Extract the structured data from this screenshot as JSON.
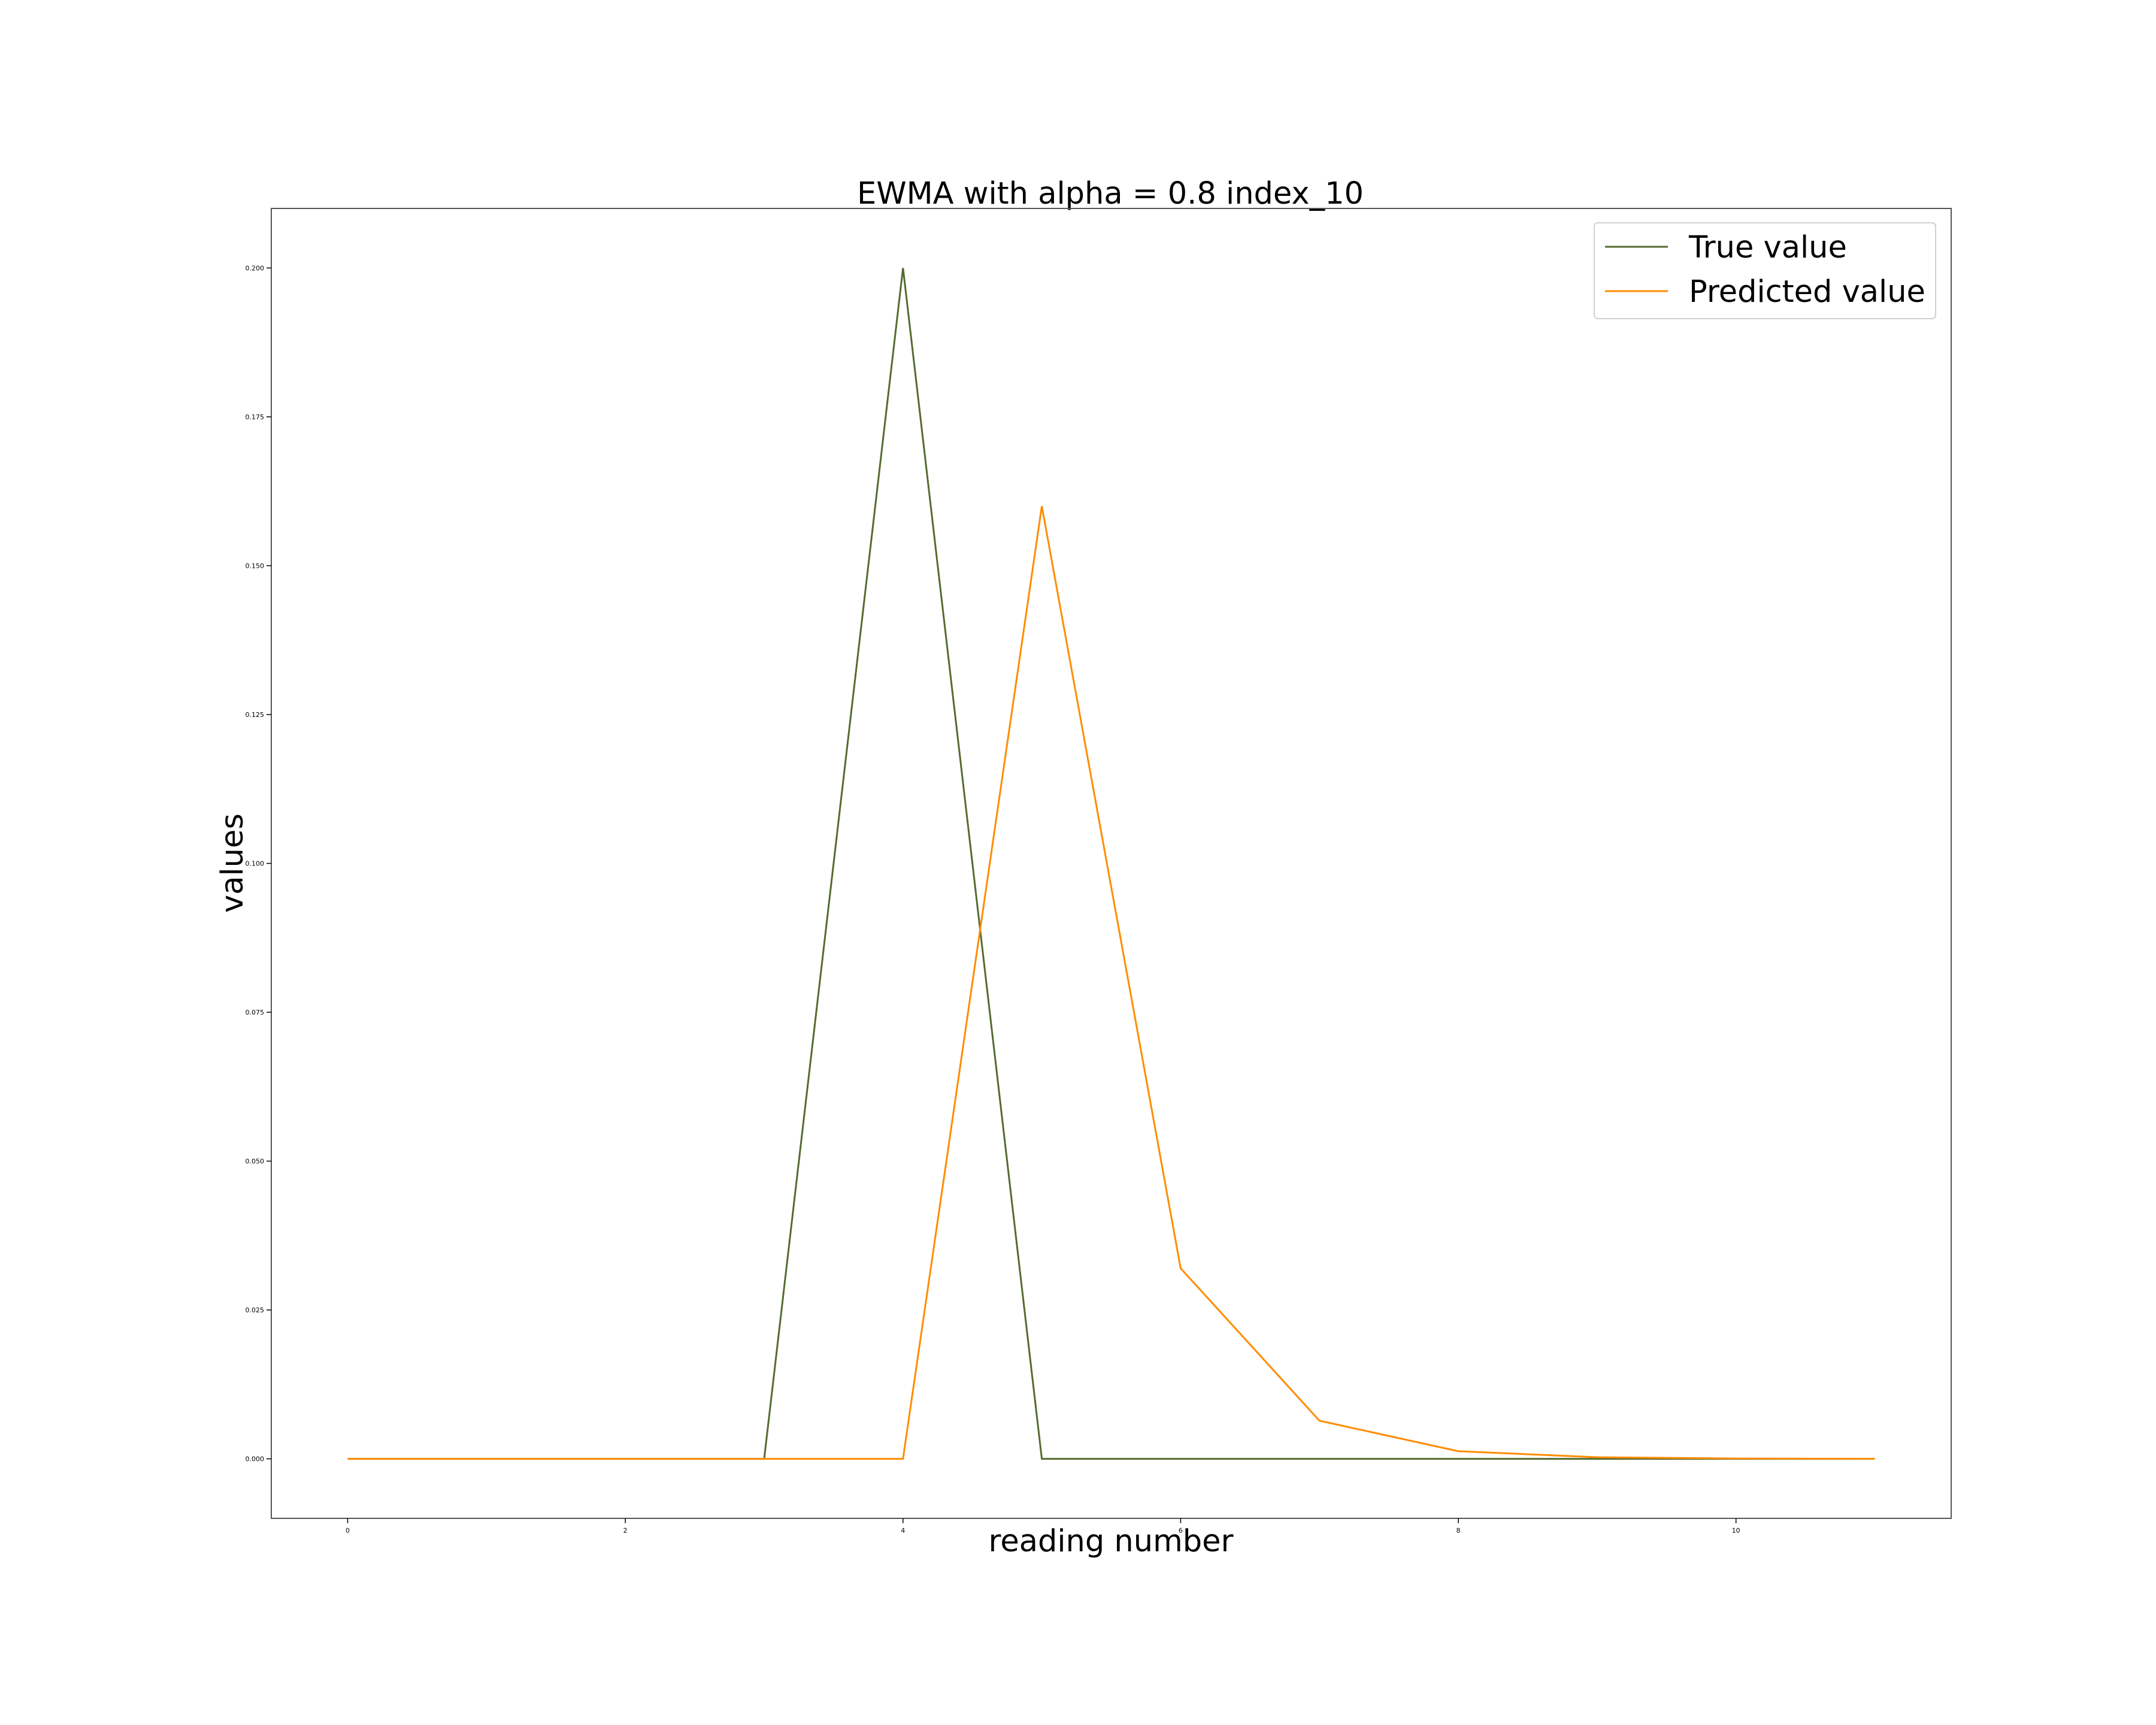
{
  "chart_data": {
    "type": "line",
    "title": "EWMA with alpha = 0.8 index_10",
    "xlabel": "reading number",
    "ylabel": "values",
    "x": [
      0,
      1,
      2,
      3,
      4,
      5,
      6,
      7,
      8,
      9,
      10,
      11
    ],
    "xlim": [
      -0.55,
      11.55
    ],
    "ylim": [
      -0.01,
      0.21
    ],
    "xticks": [
      0,
      2,
      4,
      6,
      8,
      10
    ],
    "xtick_labels": [
      "0",
      "2",
      "4",
      "6",
      "8",
      "10"
    ],
    "yticks": [
      0.0,
      0.025,
      0.05,
      0.075,
      0.1,
      0.125,
      0.15,
      0.175,
      0.2
    ],
    "ytick_labels": [
      "0.000",
      "0.025",
      "0.050",
      "0.075",
      "0.100",
      "0.125",
      "0.150",
      "0.175",
      "0.200"
    ],
    "grid": false,
    "legend_position": "top-right",
    "series": [
      {
        "name": "True value",
        "color": "#556b2f",
        "values": [
          0,
          0,
          0,
          0,
          0.2,
          0,
          0,
          0,
          0,
          0,
          0,
          0
        ]
      },
      {
        "name": "Predicted value",
        "color": "#ff8c00",
        "values": [
          0,
          0,
          0,
          0,
          0,
          0.16,
          0.032,
          0.0064,
          0.00128,
          0.000256,
          5.12e-05,
          1.024e-05
        ]
      }
    ]
  }
}
